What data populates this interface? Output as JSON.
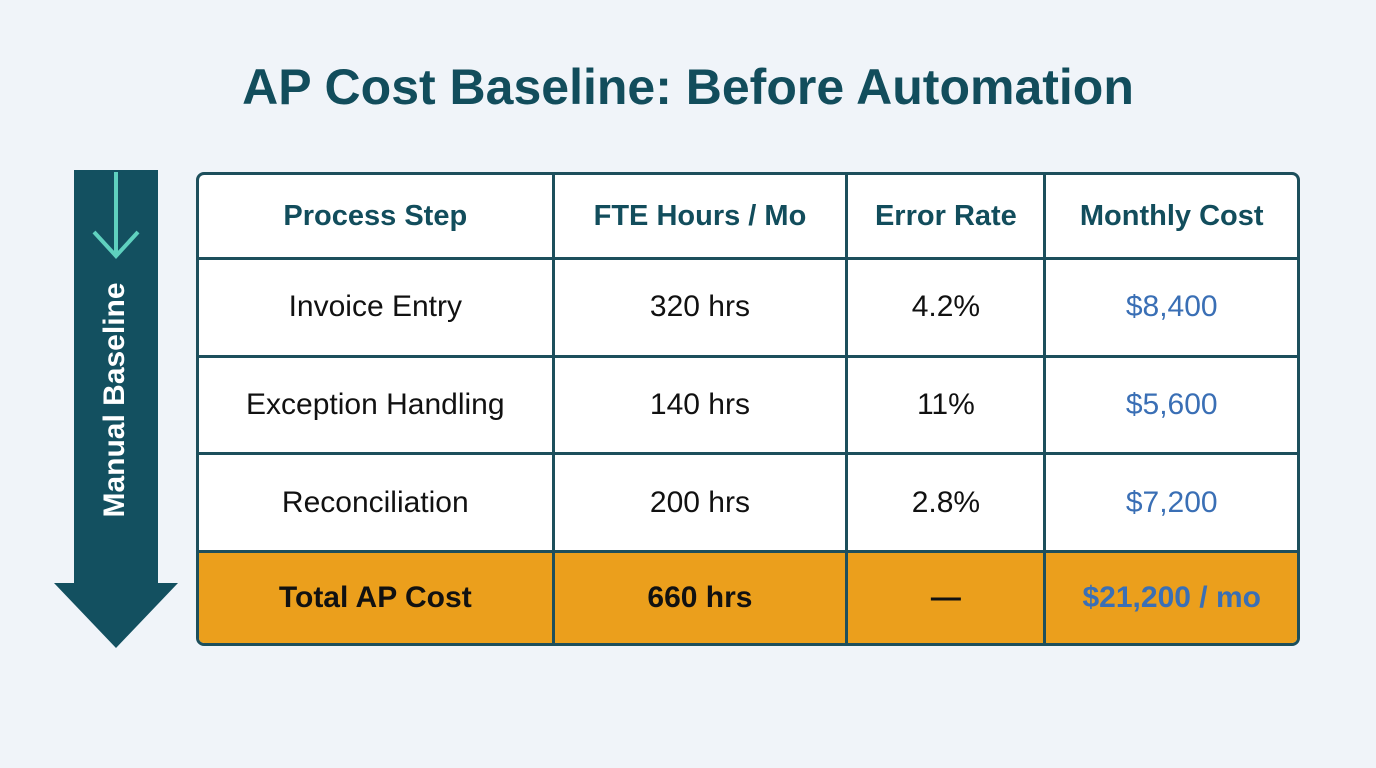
{
  "header": {
    "title": "AP Cost Baseline: Before Automation"
  },
  "side_label": "Manual Baseline",
  "table": {
    "columns": [
      "Process Step",
      "FTE Hours / Mo",
      "Error Rate",
      "Monthly Cost"
    ],
    "rows": [
      [
        "Invoice Entry",
        "320 hrs",
        "4.2%",
        "$8,400"
      ],
      [
        "Exception Handling",
        "140 hrs",
        "11%",
        "$5,600"
      ],
      [
        "Reconciliation",
        "200 hrs",
        "2.8%",
        "$7,200"
      ]
    ],
    "total": [
      "Total AP Cost",
      "660 hrs",
      "—",
      "$21,200 / mo"
    ]
  }
}
